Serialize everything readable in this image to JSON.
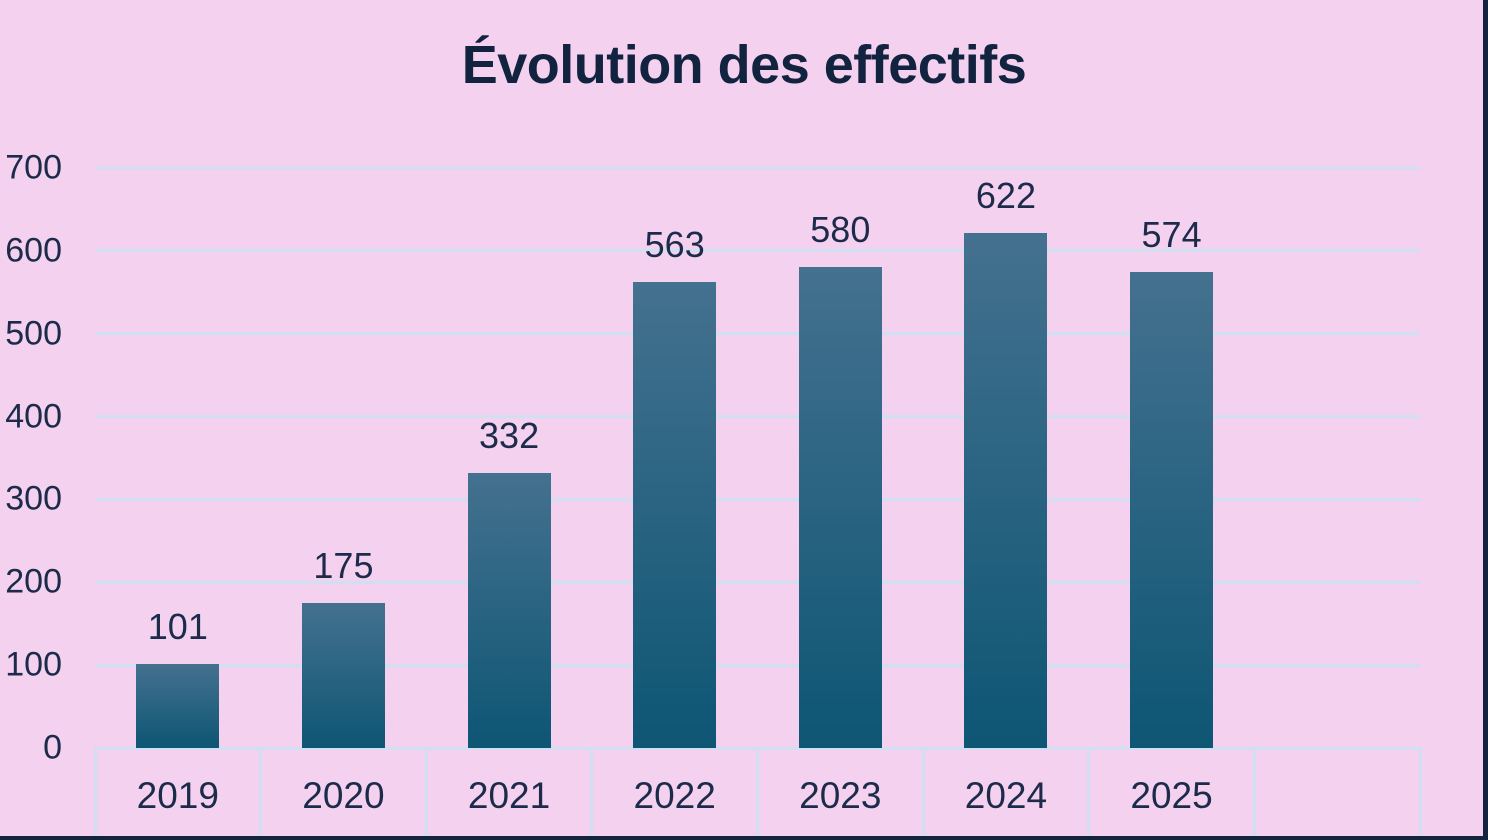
{
  "chart_data": {
    "type": "bar",
    "title": "Évolution des effectifs",
    "categories": [
      "2019",
      "2020",
      "2021",
      "2022",
      "2023",
      "2024",
      "2025"
    ],
    "values": [
      101,
      175,
      332,
      563,
      580,
      622,
      574
    ],
    "xlabel": "",
    "ylabel": "",
    "ylim": [
      0,
      700
    ],
    "ytick_step": 100,
    "ytick_labels": [
      "0",
      "100",
      "200",
      "300",
      "400",
      "500",
      "600",
      "700"
    ],
    "grid": "horizontal",
    "legend": "none",
    "footer_extra_empty_cell": true,
    "colors": {
      "background": "#f3d1ef",
      "gridline": "#cfe0f3",
      "bar_gradient_top": "#44718f",
      "bar_gradient_bottom": "#0d5674",
      "label_text": "#1c2b4a",
      "title_text": "#122340",
      "edge_strip": "#14243f"
    }
  }
}
